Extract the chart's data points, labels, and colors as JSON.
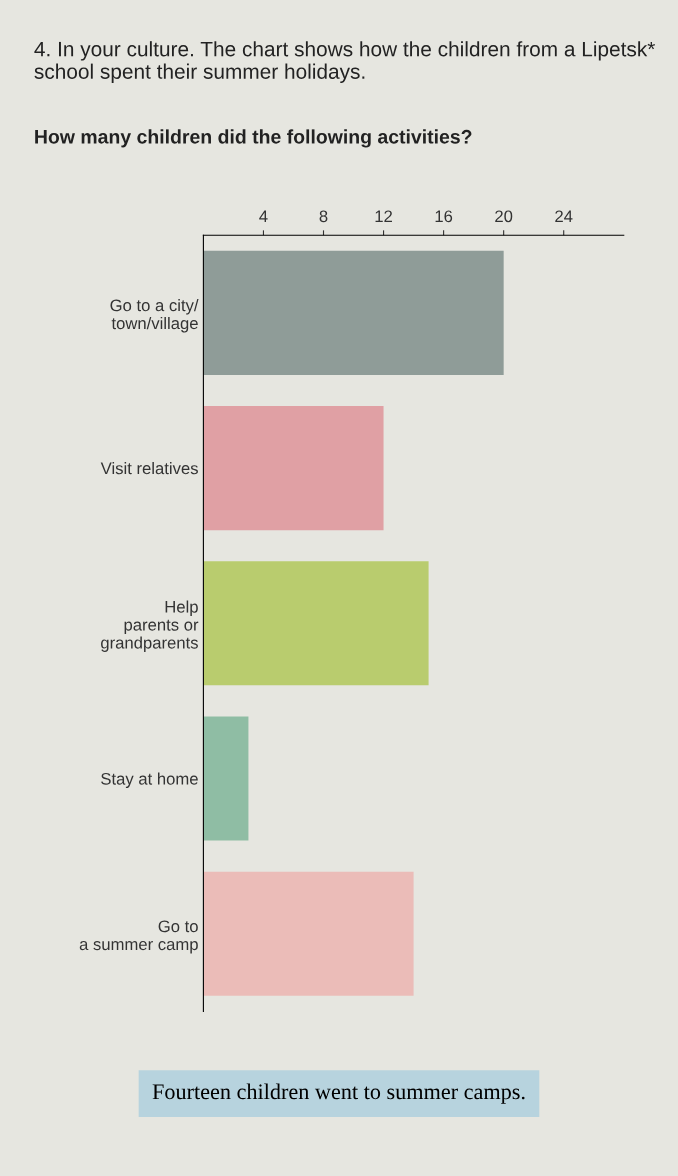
{
  "chart_data": {
    "type": "bar",
    "orientation": "horizontal",
    "title": "4. In your culture. The chart shows how the children from a Lipetsk* school spent their summer holidays.",
    "subtitle": "How many children did the following activities?",
    "categories": [
      "Go to a city/\ntown/village",
      "Visit relatives",
      "Help\nparents or\ngrandparents",
      "Stay at home",
      "Go to\na summer camp"
    ],
    "values": [
      20,
      12,
      15,
      3,
      14
    ],
    "colors": [
      "#8f9c98",
      "#e0a0a4",
      "#b9cc6e",
      "#8fbda4",
      "#ebbcb8"
    ],
    "xlim": [
      0,
      28
    ],
    "xticks": [
      4,
      8,
      12,
      16,
      20,
      24
    ],
    "grid": false,
    "annotations": [
      "Fourteen children went to summer camps."
    ]
  }
}
